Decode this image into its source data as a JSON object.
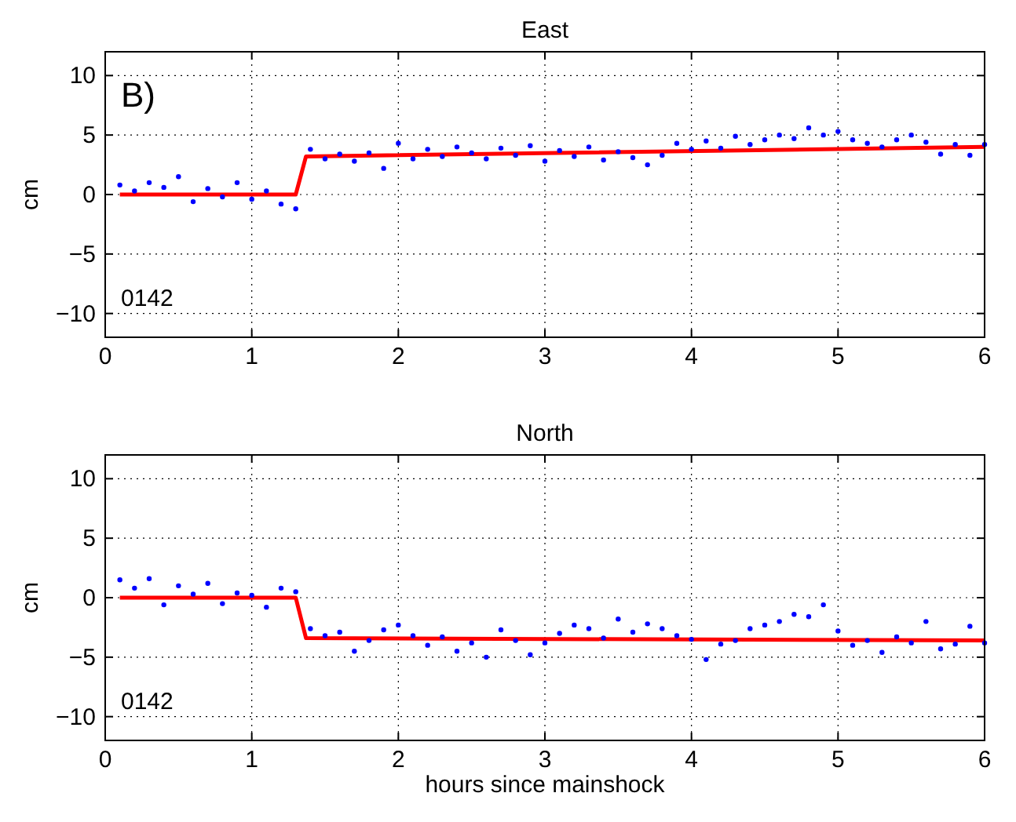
{
  "chart_data": [
    {
      "type": "scatter",
      "title": "East",
      "ylabel": "cm",
      "annotations": [
        "B)",
        "0142"
      ],
      "xlim": [
        0,
        6
      ],
      "xticks": [
        0,
        1,
        2,
        3,
        4,
        5,
        6
      ],
      "ylim": [
        -12,
        12
      ],
      "yticks": [
        -10,
        -5,
        0,
        5,
        10
      ],
      "grid": true,
      "series": [
        {
          "type": "scatter",
          "marker": "circle",
          "color": "#0000ff",
          "x": [
            0.1,
            0.2,
            0.3,
            0.4,
            0.5,
            0.6,
            0.7,
            0.8,
            0.9,
            1.0,
            1.1,
            1.2,
            1.3,
            1.4,
            1.5,
            1.6,
            1.7,
            1.8,
            1.9,
            2.0,
            2.1,
            2.2,
            2.3,
            2.4,
            2.5,
            2.6,
            2.7,
            2.8,
            2.9,
            3.0,
            3.1,
            3.2,
            3.3,
            3.4,
            3.5,
            3.6,
            3.7,
            3.8,
            3.9,
            4.0,
            4.1,
            4.2,
            4.3,
            4.4,
            4.5,
            4.6,
            4.7,
            4.8,
            4.9,
            5.0,
            5.1,
            5.2,
            5.3,
            5.4,
            5.5,
            5.6,
            5.7,
            5.8,
            5.9,
            6.0
          ],
          "values": [
            0.8,
            0.3,
            1.0,
            0.6,
            1.5,
            -0.6,
            0.5,
            -0.2,
            1.0,
            -0.4,
            0.3,
            -0.8,
            -1.2,
            3.8,
            3.0,
            3.4,
            2.8,
            3.5,
            2.2,
            4.3,
            3.0,
            3.8,
            3.2,
            4.0,
            3.5,
            3.0,
            3.9,
            3.3,
            4.1,
            2.8,
            3.7,
            3.2,
            4.0,
            2.9,
            3.6,
            3.1,
            2.5,
            3.3,
            4.3,
            3.8,
            4.5,
            3.9,
            4.9,
            4.2,
            4.6,
            5.0,
            4.7,
            5.6,
            5.0,
            5.3,
            4.6,
            4.3,
            4.0,
            4.6,
            5.0,
            4.4,
            3.4,
            4.2,
            3.3,
            4.2
          ]
        },
        {
          "type": "line",
          "color": "#ff0000",
          "x": [
            0.1,
            1.3,
            1.37,
            6
          ],
          "values": [
            0,
            0,
            3.2,
            4.0
          ]
        }
      ]
    },
    {
      "type": "scatter",
      "title": "North",
      "xlabel": "hours since mainshock",
      "ylabel": "cm",
      "annotations": [
        "0142"
      ],
      "xlim": [
        0,
        6
      ],
      "xticks": [
        0,
        1,
        2,
        3,
        4,
        5,
        6
      ],
      "ylim": [
        -12,
        12
      ],
      "yticks": [
        -10,
        -5,
        0,
        5,
        10
      ],
      "grid": true,
      "series": [
        {
          "type": "scatter",
          "marker": "circle",
          "color": "#0000ff",
          "x": [
            0.1,
            0.2,
            0.3,
            0.4,
            0.5,
            0.6,
            0.7,
            0.8,
            0.9,
            1.0,
            1.1,
            1.2,
            1.3,
            1.4,
            1.5,
            1.6,
            1.7,
            1.8,
            1.9,
            2.0,
            2.1,
            2.2,
            2.3,
            2.4,
            2.5,
            2.6,
            2.7,
            2.8,
            2.9,
            3.0,
            3.1,
            3.2,
            3.3,
            3.4,
            3.5,
            3.6,
            3.7,
            3.8,
            3.9,
            4.0,
            4.1,
            4.2,
            4.3,
            4.4,
            4.5,
            4.6,
            4.7,
            4.8,
            4.9,
            5.0,
            5.1,
            5.2,
            5.3,
            5.4,
            5.5,
            5.6,
            5.7,
            5.8,
            5.9,
            6.0
          ],
          "values": [
            1.5,
            0.8,
            1.6,
            -0.6,
            1.0,
            0.3,
            1.2,
            -0.5,
            0.4,
            0.2,
            -0.8,
            0.8,
            0.5,
            -2.6,
            -3.2,
            -2.9,
            -4.5,
            -3.6,
            -2.7,
            -2.3,
            -3.2,
            -4.0,
            -3.3,
            -4.5,
            -3.8,
            -5.0,
            -2.7,
            -3.6,
            -4.8,
            -3.8,
            -3.0,
            -2.3,
            -2.6,
            -3.4,
            -1.8,
            -2.9,
            -2.2,
            -2.6,
            -3.2,
            -3.5,
            -5.2,
            -3.9,
            -3.6,
            -2.6,
            -2.3,
            -2.0,
            -1.4,
            -1.6,
            -0.6,
            -2.8,
            -4.0,
            -3.6,
            -4.6,
            -3.3,
            -3.8,
            -2.0,
            -4.3,
            -3.9,
            -2.4,
            -3.8
          ]
        },
        {
          "type": "line",
          "color": "#ff0000",
          "x": [
            0.1,
            1.3,
            1.37,
            6
          ],
          "values": [
            0,
            0,
            -3.4,
            -3.6
          ]
        }
      ]
    }
  ]
}
